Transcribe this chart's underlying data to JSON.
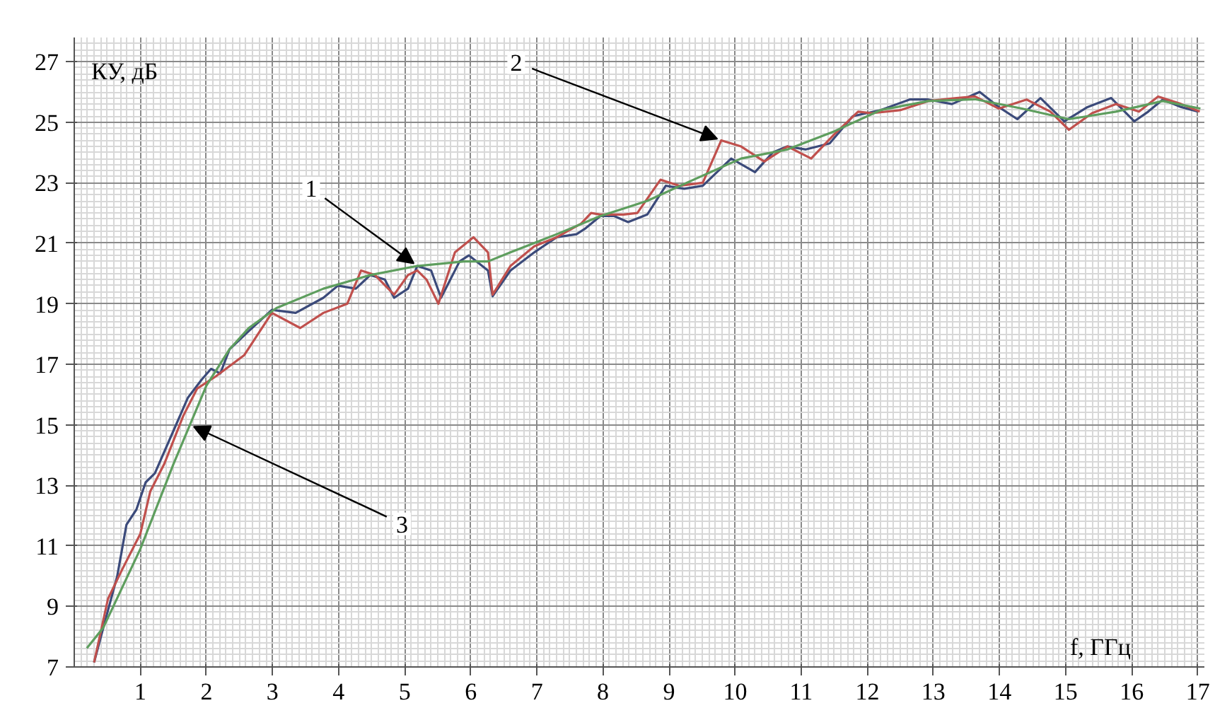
{
  "chart_data": {
    "type": "line",
    "xlabel": "f, ГГц",
    "ylabel": "КУ, дБ",
    "xlim": [
      0,
      17.1
    ],
    "ylim": [
      7,
      27.8
    ],
    "xticks": [
      1,
      2,
      3,
      4,
      5,
      6,
      7,
      8,
      9,
      10,
      11,
      12,
      13,
      14,
      15,
      16,
      17
    ],
    "yticks": [
      7,
      9,
      11,
      13,
      15,
      17,
      19,
      21,
      23,
      25,
      27
    ],
    "grid": true,
    "marker": "none",
    "line_style": "solid",
    "series": [
      {
        "color": "#3b4a7a",
        "x": [
          0.3,
          0.44,
          0.65,
          0.79,
          0.94,
          1.08,
          1.22,
          1.5,
          1.72,
          1.93,
          2.07,
          2.21,
          2.35,
          2.64,
          2.99,
          3.35,
          3.77,
          3.99,
          4.26,
          4.48,
          4.7,
          4.84,
          5.05,
          5.19,
          5.4,
          5.55,
          5.83,
          5.97,
          6.26,
          6.33,
          6.6,
          6.96,
          7.3,
          7.6,
          7.74,
          7.96,
          8.17,
          8.38,
          8.67,
          8.95,
          9.23,
          9.51,
          9.94,
          10.3,
          10.57,
          10.79,
          11.07,
          11.43,
          11.78,
          12.2,
          12.64,
          12.92,
          13.28,
          13.7,
          13.99,
          14.27,
          14.62,
          14.98,
          15.33,
          15.69,
          16.04,
          16.25,
          16.47,
          16.75,
          17.0
        ],
        "values": [
          7.15,
          8.3,
          10.0,
          11.7,
          12.2,
          13.1,
          13.4,
          14.8,
          15.9,
          16.5,
          16.85,
          16.7,
          17.5,
          18.1,
          18.8,
          18.7,
          19.2,
          19.6,
          19.5,
          19.95,
          19.8,
          19.2,
          19.5,
          20.25,
          20.1,
          19.2,
          20.4,
          20.6,
          20.1,
          19.25,
          20.1,
          20.7,
          21.2,
          21.3,
          21.5,
          21.9,
          21.9,
          21.7,
          21.95,
          22.9,
          22.8,
          22.9,
          23.8,
          23.35,
          24.0,
          24.2,
          24.1,
          24.3,
          25.2,
          25.4,
          25.75,
          25.75,
          25.6,
          26.0,
          25.5,
          25.1,
          25.8,
          25.03,
          25.5,
          25.8,
          25.03,
          25.35,
          25.75,
          25.5,
          25.35
        ]
      },
      {
        "color": "#c0504d",
        "x": [
          0.3,
          0.51,
          0.72,
          1.0,
          1.15,
          1.36,
          1.65,
          1.86,
          2.14,
          2.57,
          2.99,
          3.42,
          3.77,
          4.13,
          4.34,
          4.55,
          4.84,
          5.05,
          5.19,
          5.33,
          5.51,
          5.76,
          6.04,
          6.26,
          6.33,
          6.6,
          6.96,
          7.3,
          7.67,
          7.82,
          7.96,
          8.31,
          8.52,
          8.87,
          9.16,
          9.51,
          9.79,
          10.09,
          10.44,
          10.79,
          11.15,
          11.5,
          11.86,
          12.07,
          12.5,
          12.92,
          13.35,
          13.63,
          13.99,
          14.41,
          14.77,
          15.05,
          15.4,
          15.76,
          16.11,
          16.4,
          16.75,
          17.03
        ],
        "values": [
          7.15,
          9.25,
          10.2,
          11.4,
          12.8,
          13.7,
          15.3,
          16.2,
          16.6,
          17.3,
          18.7,
          18.2,
          18.7,
          19.0,
          20.1,
          19.95,
          19.3,
          19.95,
          20.1,
          19.8,
          19.0,
          20.7,
          21.2,
          20.7,
          19.3,
          20.25,
          20.9,
          21.2,
          21.65,
          22.0,
          21.95,
          21.95,
          22.0,
          23.1,
          22.9,
          23.0,
          24.4,
          24.2,
          23.7,
          24.2,
          23.8,
          24.6,
          25.35,
          25.3,
          25.4,
          25.7,
          25.8,
          25.85,
          25.45,
          25.75,
          25.35,
          24.75,
          25.3,
          25.6,
          25.35,
          25.85,
          25.6,
          25.35
        ]
      },
      {
        "color": "#5e9e5e",
        "x": [
          0.19,
          0.44,
          1.0,
          1.5,
          2.0,
          2.35,
          2.64,
          3.06,
          3.77,
          4.48,
          5.19,
          5.9,
          6.26,
          6.6,
          7.3,
          7.96,
          8.67,
          9.37,
          10.09,
          10.79,
          11.5,
          12.2,
          12.92,
          13.63,
          14.34,
          15.05,
          15.76,
          16.47,
          17.04
        ],
        "values": [
          7.62,
          8.3,
          10.9,
          13.7,
          16.3,
          17.5,
          18.2,
          18.86,
          19.5,
          19.95,
          20.25,
          20.4,
          20.4,
          20.7,
          21.3,
          21.9,
          22.4,
          23.1,
          23.8,
          24.1,
          24.7,
          25.4,
          25.7,
          25.76,
          25.45,
          25.1,
          25.35,
          25.7,
          25.45
        ]
      }
    ],
    "annotations": [
      {
        "text": "1",
        "x": 5.19,
        "y": 20.25
      },
      {
        "text": "2",
        "x": 9.79,
        "y": 24.4
      },
      {
        "text": "3",
        "x": 1.75,
        "y": 15.0
      }
    ]
  }
}
